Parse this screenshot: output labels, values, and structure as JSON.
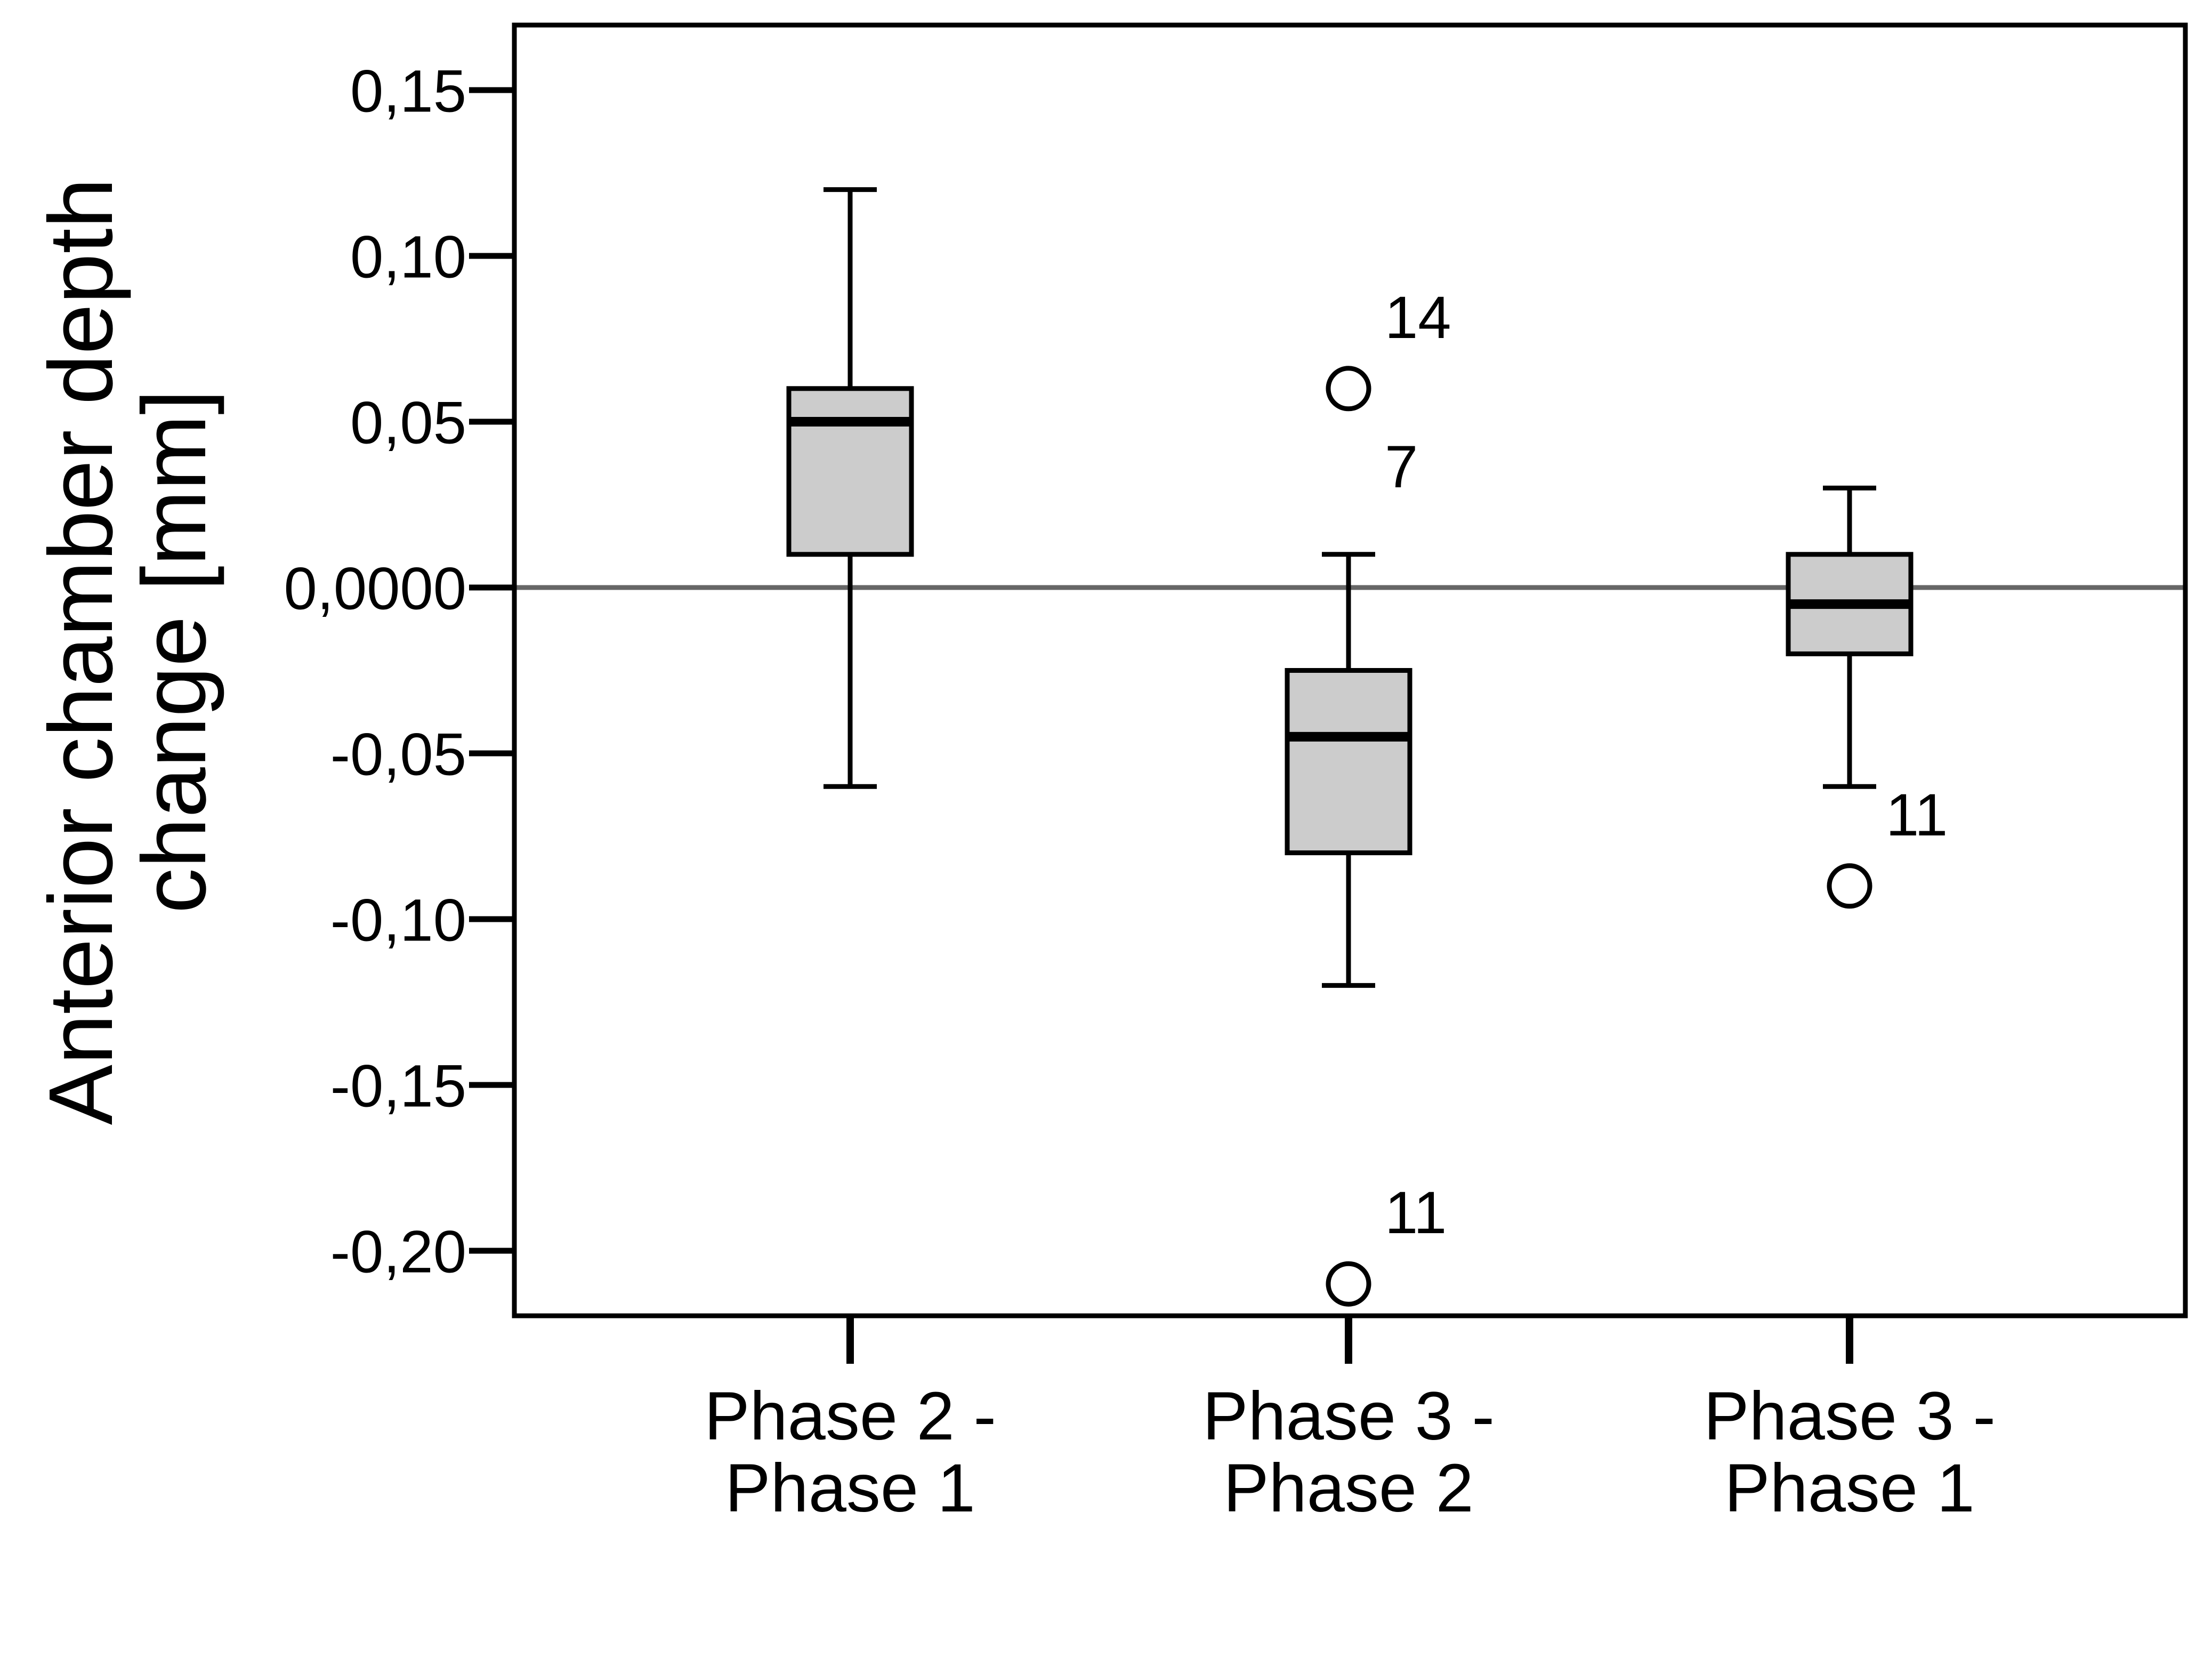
{
  "chart_data": {
    "type": "boxplot",
    "title": "",
    "xlabel": "",
    "ylabel_lines": [
      "Anterior chamber depth",
      "change [mm]"
    ],
    "ylim": [
      -0.22,
      0.17
    ],
    "yticks": [
      {
        "value": 0.15,
        "label": "0,15"
      },
      {
        "value": 0.1,
        "label": "0,10"
      },
      {
        "value": 0.05,
        "label": "0,05"
      },
      {
        "value": 0.0,
        "label": "0,0000"
      },
      {
        "value": -0.05,
        "label": "-0,05"
      },
      {
        "value": -0.1,
        "label": "-0,10"
      },
      {
        "value": -0.15,
        "label": "-0,15"
      },
      {
        "value": -0.2,
        "label": "-0,20"
      }
    ],
    "grid": false,
    "reference_line": {
      "y": 0.0,
      "color": "#666666"
    },
    "colors": {
      "box_fill": "#cccccc",
      "stroke": "#000000"
    },
    "categories": [
      {
        "label_lines": [
          "Phase 2 -",
          "Phase 1"
        ],
        "whisker_low": -0.06,
        "q1": 0.01,
        "median": 0.05,
        "q3": 0.06,
        "whisker_high": 0.12,
        "outliers": []
      },
      {
        "label_lines": [
          "Phase 3 -",
          "Phase 2"
        ],
        "whisker_low": -0.12,
        "q1": -0.08,
        "median": -0.045,
        "q3": -0.025,
        "whisker_high": 0.01,
        "outliers": [
          {
            "value": 0.06,
            "labels": [
              "14",
              "7"
            ]
          },
          {
            "value": -0.21,
            "labels": [
              "11"
            ]
          }
        ]
      },
      {
        "label_lines": [
          "Phase 3 -",
          "Phase 1"
        ],
        "whisker_low": -0.06,
        "q1": -0.02,
        "median": -0.005,
        "q3": 0.01,
        "whisker_high": 0.03,
        "outliers": [
          {
            "value": -0.09,
            "labels": [
              "11"
            ]
          }
        ]
      }
    ]
  }
}
